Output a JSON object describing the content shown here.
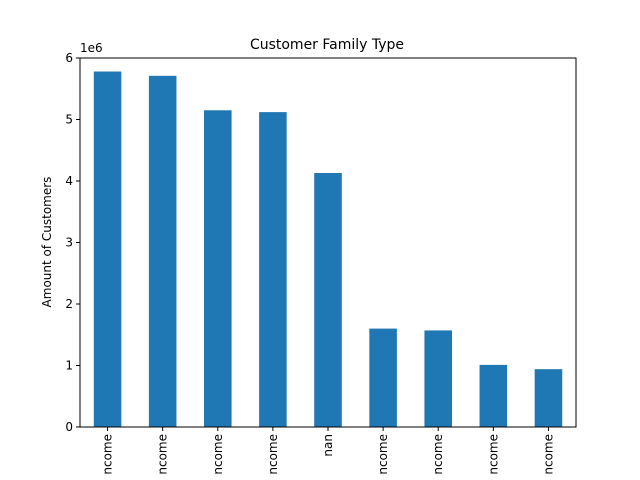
{
  "chart_data": {
    "type": "bar",
    "title": "Customer Family Type",
    "ylabel": "Amount of Customers",
    "xlabel": "",
    "y_offset_label": "1e6",
    "y_scale": 1000000,
    "ylim": [
      0,
      6000000
    ],
    "yticks": [
      0,
      1000000,
      2000000,
      3000000,
      4000000,
      5000000,
      6000000
    ],
    "ytick_labels": [
      "0",
      "1",
      "2",
      "3",
      "4",
      "5",
      "6"
    ],
    "categories": [
      "ncome",
      "ncome",
      "ncome",
      "ncome",
      "nan",
      "ncome",
      "ncome",
      "ncome",
      "ncome"
    ],
    "values": [
      5780000,
      5710000,
      5150000,
      5120000,
      4130000,
      1600000,
      1570000,
      1010000,
      940000
    ],
    "bar_color": "#1f77b4",
    "grid": false,
    "legend": "none"
  }
}
